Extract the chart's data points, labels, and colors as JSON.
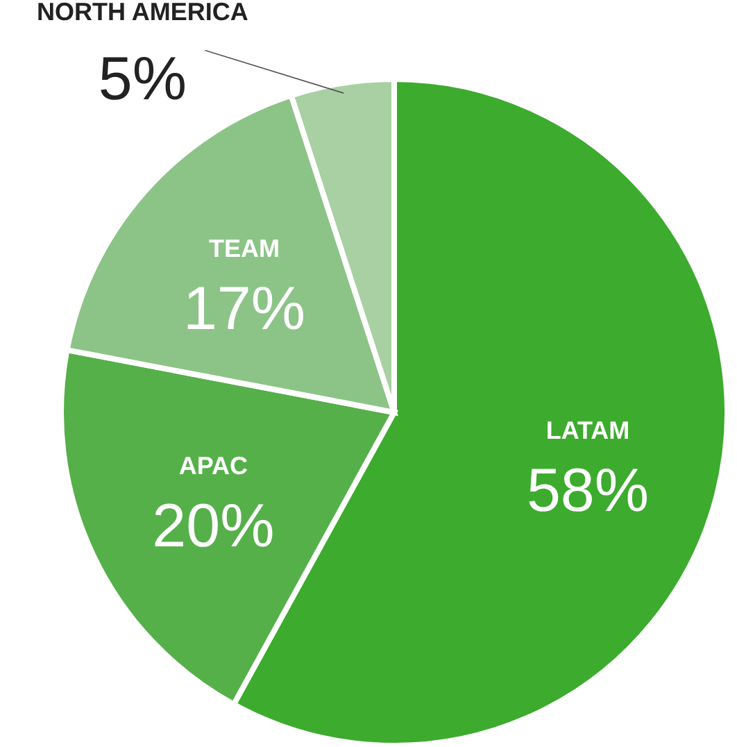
{
  "chart_data": {
    "type": "pie",
    "categories": [
      "LATAM",
      "APAC",
      "TEAM",
      "NORTH AMERICA"
    ],
    "values": [
      58,
      20,
      17,
      5
    ],
    "colors": [
      "#3dab2e",
      "#55b04a",
      "#8cc487",
      "#a8d0a3"
    ],
    "value_labels": [
      "58%",
      "20%",
      "17%",
      "5%"
    ]
  }
}
